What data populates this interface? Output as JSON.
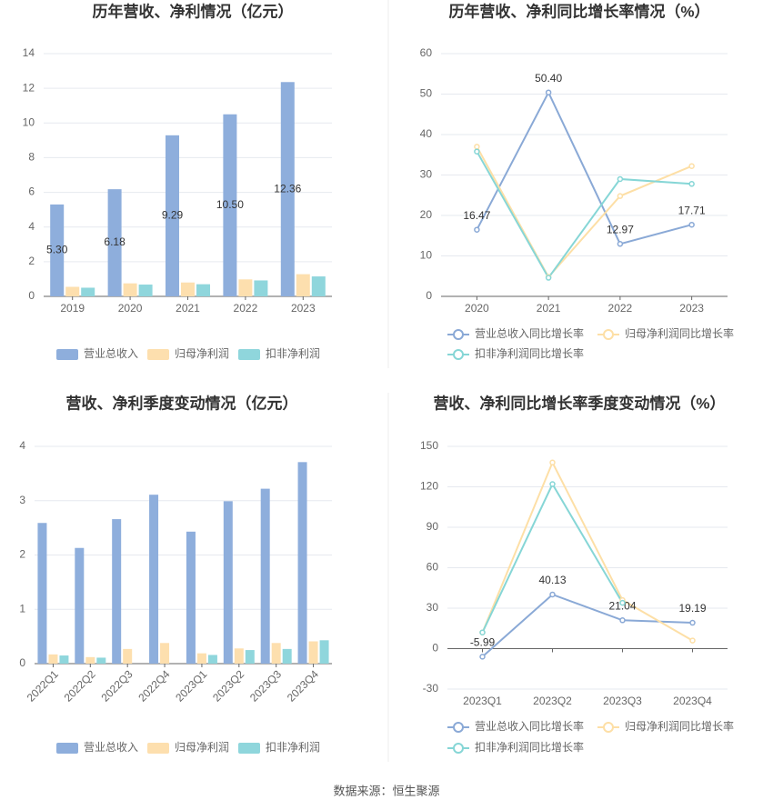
{
  "chart_data": [
    {
      "type": "bar",
      "title": "历年营收、净利情况（亿元）",
      "categories": [
        "2019",
        "2020",
        "2021",
        "2022",
        "2023"
      ],
      "series": [
        {
          "name": "营业总收入",
          "color": "#8eaedc",
          "values": [
            5.3,
            6.18,
            9.29,
            10.5,
            12.36
          ],
          "value_labels": [
            "5.30",
            "6.18",
            "9.29",
            "10.50",
            "12.36"
          ]
        },
        {
          "name": "归母净利润",
          "color": "#fddfae",
          "values": [
            0.55,
            0.75,
            0.8,
            0.98,
            1.28
          ]
        },
        {
          "name": "扣非净利润",
          "color": "#8fd6dc",
          "values": [
            0.5,
            0.68,
            0.7,
            0.92,
            1.15
          ]
        }
      ],
      "ylim": [
        0,
        14
      ],
      "yticks": [
        0,
        2,
        4,
        6,
        8,
        10,
        12,
        14
      ],
      "grid": true
    },
    {
      "type": "line",
      "title": "历年营收、净利同比增长率情况（%）",
      "categories": [
        "2020",
        "2021",
        "2022",
        "2023"
      ],
      "series": [
        {
          "name": "营业总收入同比增长率",
          "color": "#8aa9d6",
          "values": [
            16.47,
            50.4,
            12.97,
            17.71
          ],
          "value_labels": [
            "16.47",
            "50.40",
            "12.97",
            "17.71"
          ]
        },
        {
          "name": "归母净利润同比增长率",
          "color": "#fddfa6",
          "values": [
            37,
            4.8,
            24.8,
            32.2
          ]
        },
        {
          "name": "扣非净利润同比增长率",
          "color": "#86d6d6",
          "values": [
            35.8,
            4.6,
            29,
            27.8
          ]
        }
      ],
      "ylim": [
        0,
        60
      ],
      "yticks": [
        0,
        10,
        20,
        30,
        40,
        50,
        60
      ],
      "grid": true
    },
    {
      "type": "bar",
      "title": "营收、净利季度变动情况（亿元）",
      "categories": [
        "2022Q1",
        "2022Q2",
        "2022Q3",
        "2022Q4",
        "2023Q1",
        "2023Q2",
        "2023Q3",
        "2023Q4"
      ],
      "series": [
        {
          "name": "营业总收入",
          "color": "#8eaedc",
          "values": [
            2.59,
            2.13,
            2.66,
            3.11,
            2.43,
            2.99,
            3.22,
            3.71
          ]
        },
        {
          "name": "归母净利润",
          "color": "#fddfae",
          "values": [
            0.17,
            0.12,
            0.27,
            0.38,
            0.19,
            0.28,
            0.38,
            0.41
          ]
        },
        {
          "name": "扣非净利润",
          "color": "#8fd6dc",
          "values": [
            0.15,
            0.11,
            null,
            null,
            0.16,
            0.25,
            0.27,
            0.43
          ]
        }
      ],
      "ylim": [
        0,
        4
      ],
      "yticks": [
        0,
        1,
        2,
        3,
        4
      ],
      "grid": true
    },
    {
      "type": "line",
      "title": "营收、净利同比增长率季度变动情况（%）",
      "categories": [
        "2023Q1",
        "2023Q2",
        "2023Q3",
        "2023Q4"
      ],
      "series": [
        {
          "name": "营业总收入同比增长率",
          "color": "#8aa9d6",
          "values": [
            -5.99,
            40.13,
            21.04,
            19.19
          ]
        },
        {
          "name": "归母净利润同比增长率",
          "color": "#fddfa6",
          "values": [
            12,
            138,
            36,
            6
          ]
        },
        {
          "name": "扣非净利润同比增长率",
          "color": "#86d6d6",
          "values": [
            12,
            122,
            34,
            null
          ]
        }
      ],
      "ylim": [
        -30,
        150
      ],
      "yticks": [
        -30,
        0,
        30,
        60,
        90,
        120,
        150
      ],
      "grid": true
    }
  ],
  "source": "数据来源：恒生聚源"
}
